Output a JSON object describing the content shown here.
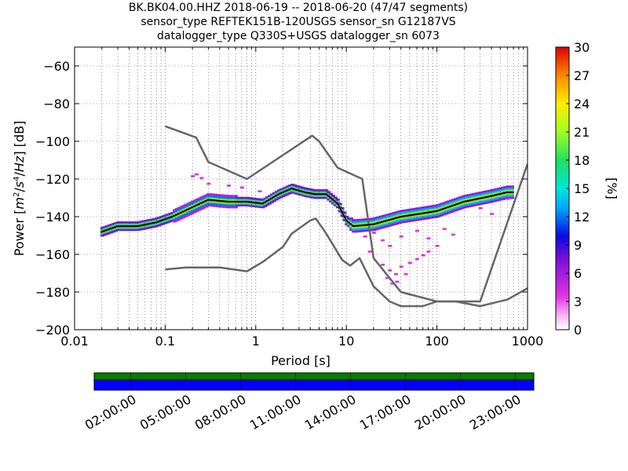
{
  "title": {
    "line1": "BK.BK04.00.HHZ   2018-06-19 -- 2018-06-20  (47/47 segments)",
    "line2": "sensor_type REFTEK151B-120USGS sensor_sn G12187VS",
    "line3": "datalogger_type Q330S+USGS datalogger_sn 6073"
  },
  "colors": {
    "noise_model": "#666666",
    "mean_line": "#000000",
    "coverage_green": "#008000",
    "coverage_blue": "#0000ff"
  },
  "chart_data": [
    {
      "type": "heatmap",
      "title": "BK.BK04.00.HHZ   2018-06-19 -- 2018-06-20  (47/47 segments)",
      "xlabel": "Period [s]",
      "ylabel": "Power [m²/s⁴/Hz] [dB]",
      "xscale": "log",
      "xlim": [
        0.01,
        1000
      ],
      "ylim": [
        -200,
        -50
      ],
      "xticks": [
        "0.01",
        "0.1",
        "1",
        "10",
        "100",
        "1000"
      ],
      "yticks": [
        "−60",
        "−80",
        "−100",
        "−120",
        "−140",
        "−160",
        "−180",
        "−200"
      ],
      "grid": true,
      "colorbar": {
        "label": "[%]",
        "min": 0,
        "max": 30,
        "ticks": [
          "30",
          "27",
          "24",
          "21",
          "18",
          "15",
          "12",
          "9",
          "6",
          "3",
          "0"
        ]
      },
      "series": [
        {
          "name": "",
          "values": [
            [
              0.1,
              -92
            ],
            [
              0.22,
              -98
            ],
            [
              0.3,
              -111
            ],
            [
              0.8,
              -120
            ],
            [
              4.2,
              -97
            ],
            [
              5,
              -100
            ],
            [
              8,
              -114
            ],
            [
              15,
              -120
            ],
            [
              20,
              -162
            ],
            [
              40,
              -180
            ],
            [
              100,
              -185
            ],
            [
              300,
              -185
            ],
            [
              1000,
              -112
            ]
          ]
        },
        {
          "name": "",
          "values": [
            [
              0.1,
              -168
            ],
            [
              0.17,
              -167
            ],
            [
              0.4,
              -167
            ],
            [
              0.8,
              -169
            ],
            [
              1.2,
              -164
            ],
            [
              2,
              -156
            ],
            [
              2.5,
              -149
            ],
            [
              4,
              -142
            ],
            [
              4.6,
              -141
            ],
            [
              6,
              -149
            ],
            [
              9,
              -163
            ],
            [
              11,
              -166
            ],
            [
              14,
              -162
            ],
            [
              20,
              -177
            ],
            [
              30,
              -185
            ],
            [
              40,
              -187.5
            ],
            [
              70,
              -187.5
            ],
            [
              100,
              -185
            ],
            [
              160,
              -185
            ],
            [
              300,
              -187.5
            ],
            [
              600,
              -184
            ],
            [
              1000,
              -178
            ]
          ]
        },
        {
          "name": "",
          "values": [
            [
              0.02,
              -148
            ],
            [
              0.03,
              -145
            ],
            [
              0.05,
              -145
            ],
            [
              0.08,
              -143
            ],
            [
              0.12,
              -140
            ],
            [
              0.2,
              -135
            ],
            [
              0.3,
              -131
            ],
            [
              0.5,
              -132
            ],
            [
              0.8,
              -132
            ],
            [
              1.2,
              -133
            ],
            [
              1.8,
              -128
            ],
            [
              2.5,
              -125
            ],
            [
              3.5,
              -127
            ],
            [
              4.5,
              -128
            ],
            [
              6,
              -128
            ],
            [
              8,
              -133
            ],
            [
              10,
              -142
            ],
            [
              12,
              -145
            ],
            [
              20,
              -144
            ],
            [
              40,
              -140
            ],
            [
              100,
              -137
            ],
            [
              200,
              -132
            ],
            [
              400,
              -129
            ],
            [
              600,
              -127
            ],
            [
              700,
              -127
            ]
          ]
        }
      ]
    },
    {
      "type": "bar",
      "title": "",
      "xlabel": "",
      "ylabel": "",
      "xticks": [
        "02:00:00",
        "05:00:00",
        "08:00:00",
        "11:00:00",
        "14:00:00",
        "17:00:00",
        "20:00:00",
        "23:00:00"
      ],
      "series": [
        {
          "name": "",
          "color": "#008000",
          "values": [
            1
          ]
        },
        {
          "name": "",
          "color": "#0000ff",
          "values": [
            1
          ]
        }
      ]
    }
  ]
}
